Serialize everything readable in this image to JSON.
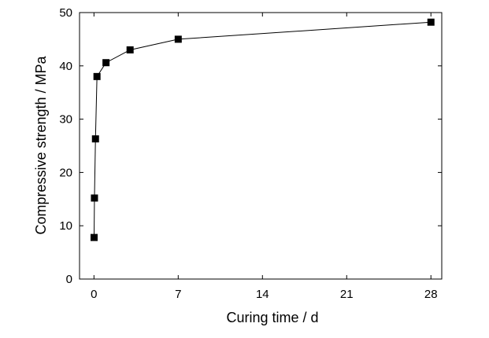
{
  "chart_data": {
    "type": "line",
    "xlabel": "Curing time / d",
    "ylabel": "Compressive strength / MPa",
    "xlim": [
      -1.2,
      28.9
    ],
    "ylim": [
      0,
      50
    ],
    "xticks": [
      0,
      7,
      14,
      21,
      28
    ],
    "yticks": [
      0,
      10,
      20,
      30,
      40,
      50
    ],
    "grid": false,
    "series": [
      {
        "x": [
          0.01,
          0.04,
          0.125,
          0.25,
          1,
          3,
          7,
          28
        ],
        "y": [
          7.8,
          15.2,
          26.3,
          38.0,
          40.6,
          43.0,
          45.0,
          48.2
        ]
      }
    ],
    "colors": {
      "line": "#000000",
      "marker": "#000000"
    }
  }
}
